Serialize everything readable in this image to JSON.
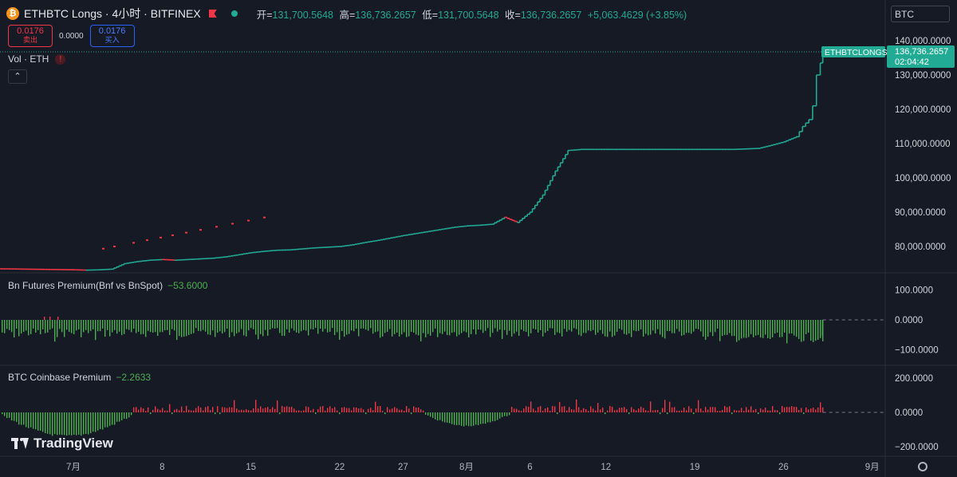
{
  "header": {
    "symbol_icon": "bitcoin-icon",
    "title": "ETHBTC Longs · 4小时 · BITFINEX",
    "ohlc": [
      {
        "k": "开=",
        "v": "131,700.5648"
      },
      {
        "k": "高=",
        "v": "136,736.2657"
      },
      {
        "k": "低=",
        "v": "131,700.5648"
      },
      {
        "k": "收=",
        "v": "136,736.2657"
      }
    ],
    "change": "+5,063.4629 (+3.85%)"
  },
  "trade": {
    "sell_price": "0.0176",
    "sell_label": "卖出",
    "spread": "0.0000",
    "buy_price": "0.0176",
    "buy_label": "买入"
  },
  "currency_select": "BTC",
  "vol_legend": "Vol · ETH",
  "collapse_icon": "chevron-up-icon",
  "price_tag": {
    "label": "ETHBTCLONGS",
    "value": "136,736.2657",
    "countdown": "02:04:42"
  },
  "panes": {
    "futures": {
      "name": "Bn Futures Premium(Bnf vs BnSpot)",
      "value": "−53.6000",
      "ticks": [
        "100.0000",
        "0.0000",
        "−100.0000"
      ]
    },
    "coinbase": {
      "name": "BTC Coinbase Premium",
      "value": "−2.2633",
      "ticks": [
        "200.0000",
        "0.0000",
        "−200.0000"
      ]
    }
  },
  "logo": "TradingView",
  "colors": {
    "up": "#22ab94",
    "down": "#f23645",
    "hist_pos": "#4caf50",
    "hist_neg_red": "#f23645",
    "bg": "#161a25"
  },
  "chart_data": {
    "type": "line",
    "main": {
      "ylim": [
        73000000,
        143000000
      ],
      "yticks": [
        "80,000.0000",
        "90,000.0000",
        "100,000.0000",
        "110,000.0000",
        "120,000.0000",
        "130,000.0000",
        "140,000.0000"
      ],
      "ytick_values": [
        80000,
        90000,
        100000,
        110000,
        120000,
        130000,
        140000
      ],
      "ylim_data": [
        73000,
        143000
      ],
      "last": 136736.2657,
      "path_days": [
        -24,
        -20,
        -16,
        -15,
        -12,
        -8,
        -6,
        -4,
        -2,
        0,
        1,
        2,
        3,
        4,
        5,
        6,
        7,
        8,
        9,
        10,
        11,
        12,
        13,
        14,
        15,
        16,
        17,
        18,
        19,
        20,
        21,
        22,
        23,
        24,
        25,
        26,
        27,
        28,
        29,
        30,
        31,
        32,
        33,
        34,
        35,
        36,
        37,
        38,
        39,
        40,
        42,
        43,
        44,
        46,
        48,
        50,
        52,
        54,
        55,
        56,
        57,
        57.5,
        58,
        58.3,
        58.6,
        58.9,
        59.1
      ],
      "path_values": [
        75000,
        74500,
        74200,
        74000,
        73800,
        73700,
        73500,
        73400,
        73300,
        73200,
        73100,
        73200,
        73400,
        75000,
        75600,
        76000,
        76200,
        76000,
        76200,
        76400,
        76600,
        77000,
        77600,
        78200,
        78600,
        78900,
        79000,
        79300,
        79600,
        79800,
        80000,
        80500,
        81200,
        81800,
        82500,
        83200,
        83800,
        84400,
        85000,
        85600,
        86000,
        86200,
        86500,
        88500,
        87000,
        90000,
        95000,
        102000,
        108000,
        108300,
        108300,
        108300,
        108300,
        108300,
        108300,
        108300,
        108300,
        108600,
        109500,
        110500,
        112000,
        115000,
        117000,
        121000,
        130000,
        133500,
        136736
      ]
    },
    "x_labels": [
      "7月",
      "8",
      "15",
      "22",
      "27",
      "8月",
      "6",
      "12",
      "19",
      "26",
      "9月"
    ],
    "x_label_days": [
      0,
      7,
      14,
      21,
      26,
      31,
      36,
      42,
      49,
      56,
      63
    ],
    "futures_premium": {
      "ylim": [
        -170,
        170
      ],
      "yticks": [
        100,
        0,
        -100
      ],
      "last": -53.6
    },
    "coinbase_premium": {
      "ylim": [
        -300,
        300
      ],
      "yticks": [
        200,
        0,
        -200
      ],
      "last": -2.2633
    }
  }
}
